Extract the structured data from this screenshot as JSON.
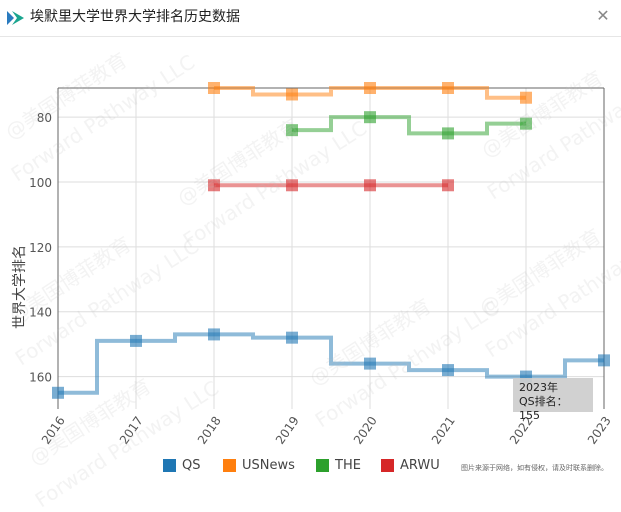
{
  "header": {
    "title": "埃默里大学世界大学排名历史数据",
    "close_icon": "close-icon"
  },
  "watermark": {
    "line1": "@美国博菲教育",
    "line2": "Forward Pathway LLC"
  },
  "tooltip": {
    "line1": "2023年",
    "line2": "QS排名：155"
  },
  "source_note": "图片来源于网络，如有侵权，请及时联系删除。",
  "chart_data": {
    "type": "line",
    "step": true,
    "ylabel": "世界大学排名",
    "xlabel": "",
    "title": "",
    "y_inverted": true,
    "ylim": [
      170,
      71
    ],
    "y_ticks": [
      80,
      100,
      120,
      140,
      160
    ],
    "x": [
      2016,
      2017,
      2018,
      2019,
      2020,
      2021,
      2022,
      2023
    ],
    "x_tick_labels": [
      "2016",
      "2017",
      "2018",
      "2019",
      "2020",
      "2021",
      "2022",
      "2023"
    ],
    "grid": true,
    "legend_position": "bottom",
    "series": [
      {
        "name": "QS",
        "color": "#1f77b4",
        "x": [
          2016,
          2017,
          2018,
          2019,
          2020,
          2021,
          2022,
          2023
        ],
        "values": [
          165,
          149,
          147,
          148,
          156,
          158,
          160,
          155
        ]
      },
      {
        "name": "USNews",
        "color": "#ff7f0e",
        "x": [
          2018,
          2019,
          2020,
          2021,
          2022
        ],
        "values": [
          71,
          73,
          71,
          71,
          74
        ]
      },
      {
        "name": "THE",
        "color": "#2ca02c",
        "x": [
          2019,
          2020,
          2021,
          2022
        ],
        "values": [
          84,
          80,
          85,
          82
        ]
      },
      {
        "name": "ARWU",
        "color": "#d62728",
        "x": [
          2018,
          2019,
          2020,
          2021
        ],
        "values": [
          101,
          101,
          101,
          101
        ]
      }
    ]
  }
}
